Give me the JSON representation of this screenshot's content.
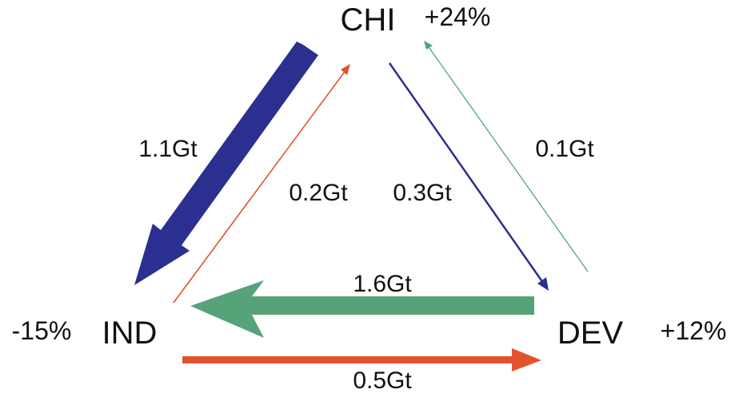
{
  "colors": {
    "blue": "#2b2f8f",
    "green": "#56a37a",
    "red": "#e2532d",
    "text": "#111111"
  },
  "nodes": {
    "chi": {
      "label": "CHI",
      "change": "+24%"
    },
    "ind": {
      "label": "IND",
      "change": "-15%"
    },
    "dev": {
      "label": "DEV",
      "change": "+12%"
    }
  },
  "flows": {
    "chi_to_ind": {
      "label": "1.1Gt",
      "color": "blue"
    },
    "ind_to_chi": {
      "label": "0.2Gt",
      "color": "red"
    },
    "chi_to_dev": {
      "label": "0.3Gt",
      "color": "blue"
    },
    "dev_to_chi": {
      "label": "0.1Gt",
      "color": "green"
    },
    "dev_to_ind": {
      "label": "1.6Gt",
      "color": "green"
    },
    "ind_to_dev": {
      "label": "0.5Gt",
      "color": "red"
    }
  }
}
